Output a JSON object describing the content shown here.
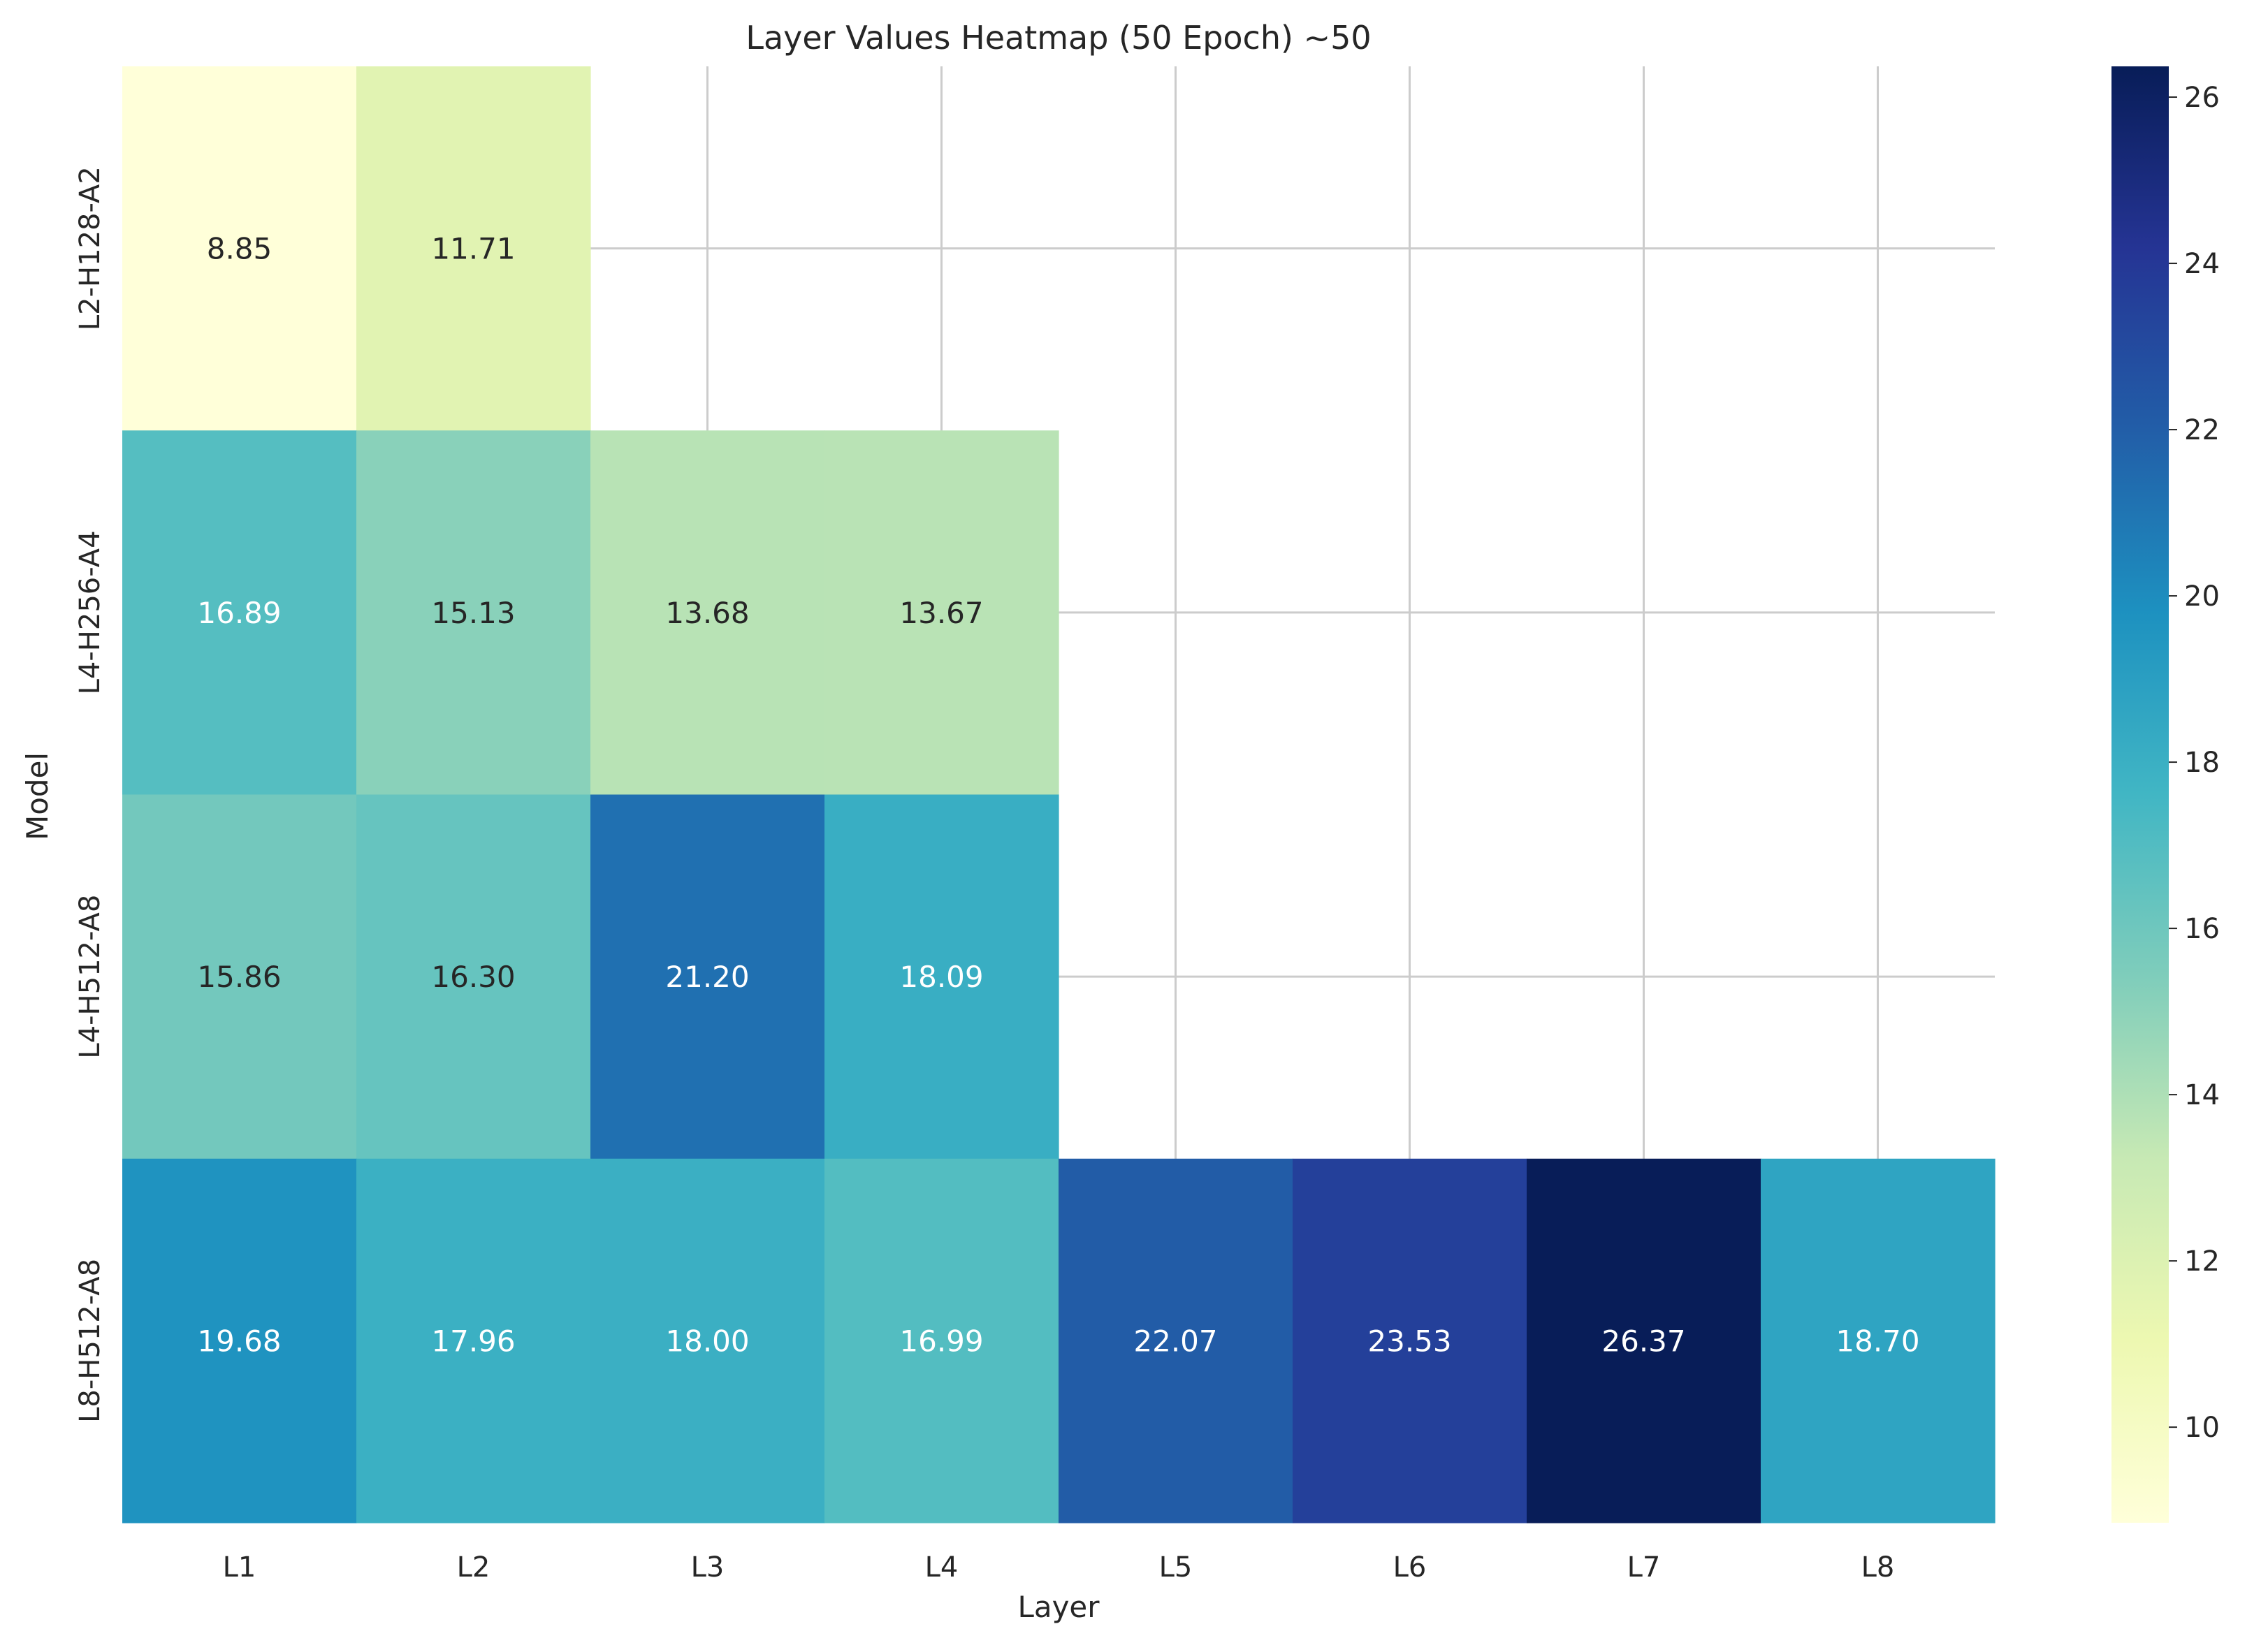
{
  "chart_data": {
    "type": "heatmap",
    "title": "Layer Values Heatmap (50 Epoch) ~50",
    "xlabel": "Layer",
    "ylabel": "Model",
    "x_categories": [
      "L1",
      "L2",
      "L3",
      "L4",
      "L5",
      "L6",
      "L7",
      "L8"
    ],
    "y_categories": [
      "L2-H128-A2",
      "L4-H256-A4",
      "L4-H512-A8",
      "L8-H512-A8"
    ],
    "values": [
      [
        8.85,
        11.71,
        null,
        null,
        null,
        null,
        null,
        null
      ],
      [
        16.89,
        15.13,
        13.68,
        13.67,
        null,
        null,
        null,
        null
      ],
      [
        15.86,
        16.3,
        21.2,
        18.09,
        null,
        null,
        null,
        null
      ],
      [
        19.68,
        17.96,
        18.0,
        16.99,
        22.07,
        23.53,
        26.37,
        18.7
      ]
    ],
    "value_format": "2 decimals",
    "colormap": "YlGnBu",
    "colorbar": {
      "range": [
        8.85,
        26.37
      ],
      "ticks": [
        10,
        12,
        14,
        16,
        18,
        20,
        22,
        24,
        26
      ]
    },
    "grid": true,
    "colors": {
      "grid": "#cccccc",
      "text_dark": "#262626",
      "text_light": "#ffffff"
    }
  }
}
